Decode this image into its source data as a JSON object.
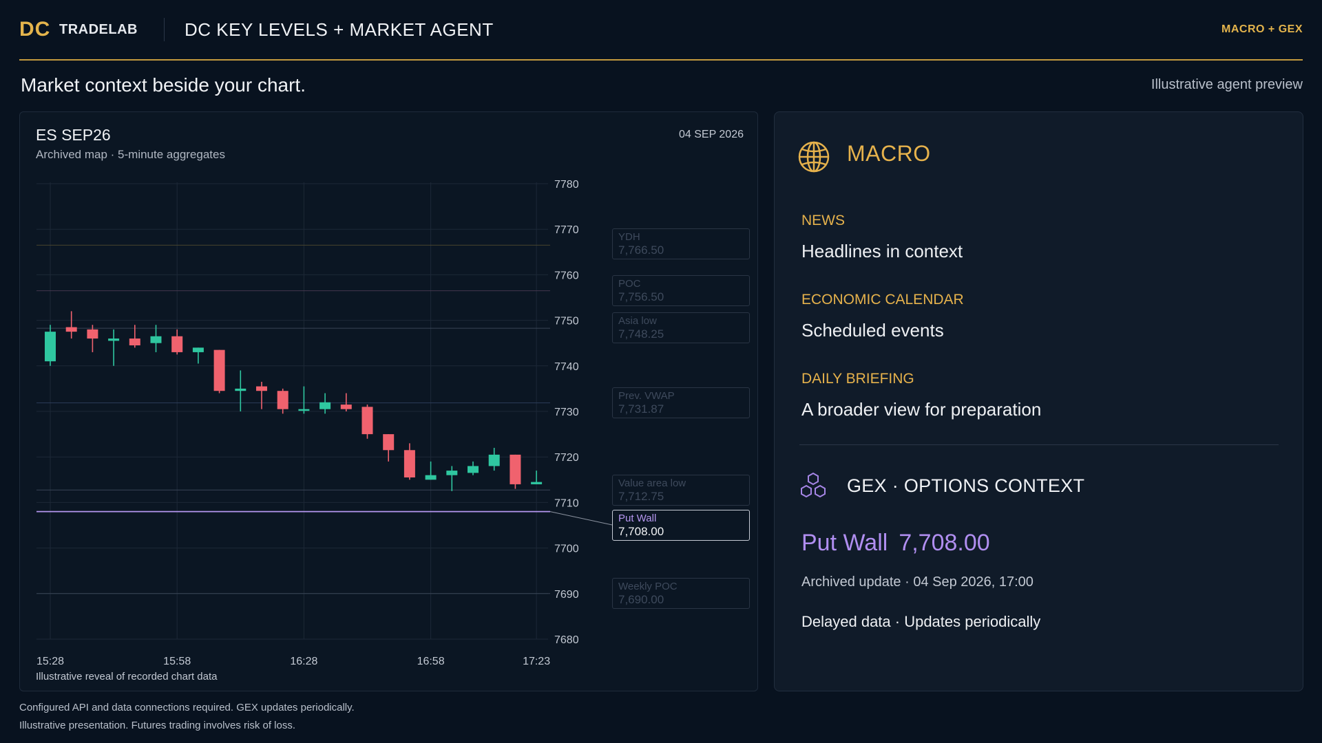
{
  "header": {
    "brand_mark": "DC",
    "brand_name": "TRADELAB",
    "title": "DC KEY LEVELS + MARKET AGENT",
    "tag": "MACRO + GEX"
  },
  "subhead": "Market context beside your chart.",
  "preview_note": "Illustrative agent preview",
  "chart": {
    "symbol": "ES SEP26",
    "subtitle": "Archived map · 5-minute aggregates",
    "date": "04 SEP 2026",
    "footnote": "Illustrative reveal of recorded chart data",
    "levels": [
      {
        "name": "YDH",
        "value": "7,766.50",
        "price": 7766.5,
        "color": "#4f4a2e",
        "active": false
      },
      {
        "name": "POC",
        "value": "7,756.50",
        "price": 7756.5,
        "color": "#4a3a52",
        "active": false
      },
      {
        "name": "Asia low",
        "value": "7,748.25",
        "price": 7748.25,
        "color": "#3e4a5c",
        "active": false
      },
      {
        "name": "Prev. VWAP",
        "value": "7,731.87",
        "price": 7731.87,
        "color": "#2f4160",
        "active": false
      },
      {
        "name": "Value area low",
        "value": "7,712.75",
        "price": 7712.75,
        "color": "#3e4a5c",
        "active": false
      },
      {
        "name": "Put Wall",
        "value": "7,708.00",
        "price": 7708.0,
        "color": "#b697f0",
        "active": true
      },
      {
        "name": "Weekly POC",
        "value": "7,690.00",
        "price": 7690.0,
        "color": "#3e4a5c",
        "active": false
      }
    ]
  },
  "chart_data": {
    "type": "candlestick",
    "title": "ES SEP26",
    "y_ticks": [
      "7780",
      "7770",
      "7760",
      "7750",
      "7740",
      "7730",
      "7720",
      "7710",
      "7700",
      "7690",
      "7680"
    ],
    "ylim": [
      7680,
      7780
    ],
    "x_ticks": [
      "15:28",
      "15:58",
      "16:28",
      "16:58",
      "17:23"
    ],
    "candles": [
      {
        "o": 7741,
        "h": 7749,
        "l": 7740,
        "c": 7747.5
      },
      {
        "o": 7748.5,
        "h": 7752,
        "l": 7746,
        "c": 7747.5
      },
      {
        "o": 7748,
        "h": 7749,
        "l": 7743,
        "c": 7746
      },
      {
        "o": 7745.5,
        "h": 7748,
        "l": 7740,
        "c": 7746
      },
      {
        "o": 7746,
        "h": 7749,
        "l": 7744,
        "c": 7744.5
      },
      {
        "o": 7745,
        "h": 7749,
        "l": 7743,
        "c": 7746.5
      },
      {
        "o": 7746.5,
        "h": 7748,
        "l": 7742.5,
        "c": 7743
      },
      {
        "o": 7743,
        "h": 7744,
        "l": 7740.5,
        "c": 7744
      },
      {
        "o": 7743.5,
        "h": 7743.5,
        "l": 7734,
        "c": 7734.5
      },
      {
        "o": 7734.5,
        "h": 7739,
        "l": 7730,
        "c": 7735
      },
      {
        "o": 7735.5,
        "h": 7736.5,
        "l": 7730.5,
        "c": 7734.5
      },
      {
        "o": 7734.5,
        "h": 7735,
        "l": 7729.5,
        "c": 7730.5
      },
      {
        "o": 7730.5,
        "h": 7735.5,
        "l": 7729.5,
        "c": 7730.5
      },
      {
        "o": 7730.5,
        "h": 7734,
        "l": 7729.5,
        "c": 7732
      },
      {
        "o": 7731.5,
        "h": 7734,
        "l": 7730,
        "c": 7730.5
      },
      {
        "o": 7731,
        "h": 7731.5,
        "l": 7724,
        "c": 7725
      },
      {
        "o": 7725,
        "h": 7725,
        "l": 7719,
        "c": 7721.5
      },
      {
        "o": 7721.5,
        "h": 7723,
        "l": 7715,
        "c": 7715.5
      },
      {
        "o": 7715,
        "h": 7719,
        "l": 7715,
        "c": 7716
      },
      {
        "o": 7716,
        "h": 7718,
        "l": 7712.5,
        "c": 7717
      },
      {
        "o": 7716.5,
        "h": 7719,
        "l": 7716,
        "c": 7718
      },
      {
        "o": 7718,
        "h": 7722,
        "l": 7717,
        "c": 7720.5
      },
      {
        "o": 7720.5,
        "h": 7720.5,
        "l": 7713,
        "c": 7714
      },
      {
        "o": 7714,
        "h": 7717,
        "l": 7714,
        "c": 7714.5
      }
    ],
    "up_color": "#2fc7a0",
    "down_color": "#f0626e"
  },
  "macro": {
    "title": "MACRO",
    "sections": [
      {
        "label": "NEWS",
        "text": "Headlines in context"
      },
      {
        "label": "ECONOMIC CALENDAR",
        "text": "Scheduled events"
      },
      {
        "label": "DAILY BRIEFING",
        "text": "A broader view for preparation"
      }
    ],
    "gex_title": "GEX · OPTIONS CONTEXT",
    "gex_label": "Put Wall",
    "gex_value": "7,708.00",
    "gex_update": "Archived update · 04 Sep 2026, 17:00",
    "gex_delay": "Delayed data · Updates periodically"
  },
  "footer": {
    "line1": "Configured API and data connections required. GEX updates periodically.",
    "line2": "Illustrative presentation. Futures trading involves risk of loss."
  },
  "colors": {
    "accent_gold": "#e6b24c",
    "accent_purple": "#b08ef0",
    "background": "#08121f"
  }
}
